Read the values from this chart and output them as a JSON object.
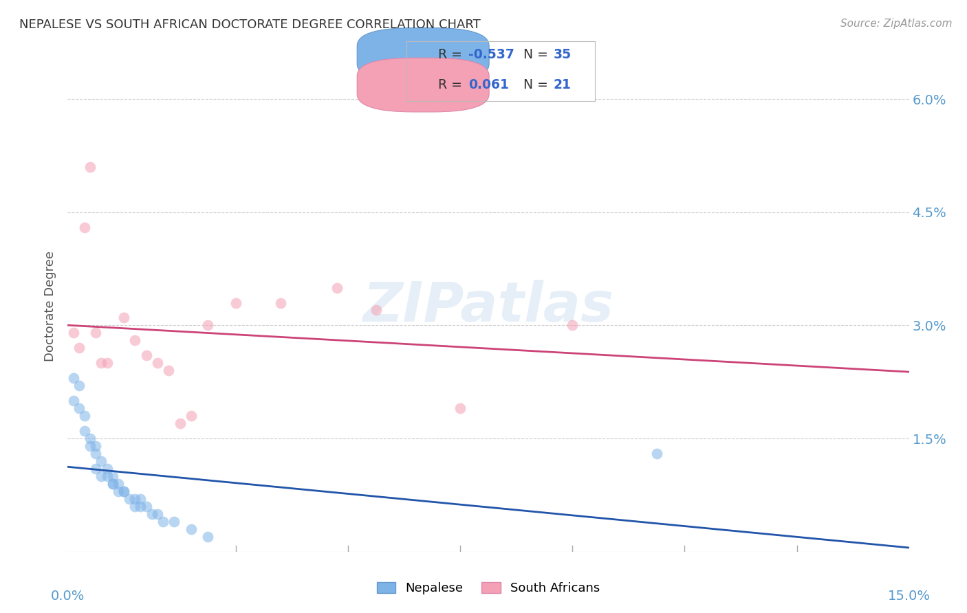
{
  "title": "NEPALESE VS SOUTH AFRICAN DOCTORATE DEGREE CORRELATION CHART",
  "source": "Source: ZipAtlas.com",
  "ylabel": "Doctorate Degree",
  "xlim": [
    0.0,
    0.15
  ],
  "ylim": [
    0.0,
    0.065
  ],
  "ytick_vals": [
    0.015,
    0.03,
    0.045,
    0.06
  ],
  "ytick_labels": [
    "1.5%",
    "3.0%",
    "4.5%",
    "6.0%"
  ],
  "grid_color": "#cccccc",
  "background_color": "#ffffff",
  "nepalese_color": "#7EB3E8",
  "nepalese_edge_color": "#6699CC",
  "nepalese_line_color": "#2255AA",
  "south_african_color": "#F4A0B5",
  "south_african_edge_color": "#DD88AA",
  "south_african_line_color": "#CC4477",
  "nepalese_R": "-0.537",
  "nepalese_N": "35",
  "south_african_R": "0.061",
  "south_african_N": "21",
  "legend_text_color": "#333333",
  "legend_value_color": "#3366CC",
  "tick_label_color": "#5599CC",
  "nepalese_x": [
    0.001,
    0.001,
    0.002,
    0.002,
    0.003,
    0.003,
    0.004,
    0.004,
    0.005,
    0.005,
    0.005,
    0.006,
    0.006,
    0.007,
    0.007,
    0.008,
    0.008,
    0.008,
    0.009,
    0.009,
    0.01,
    0.01,
    0.011,
    0.012,
    0.012,
    0.013,
    0.013,
    0.014,
    0.015,
    0.016,
    0.017,
    0.019,
    0.022,
    0.025,
    0.105
  ],
  "nepalese_y": [
    0.023,
    0.02,
    0.019,
    0.022,
    0.016,
    0.018,
    0.014,
    0.015,
    0.011,
    0.013,
    0.014,
    0.01,
    0.012,
    0.01,
    0.011,
    0.009,
    0.01,
    0.009,
    0.008,
    0.009,
    0.008,
    0.008,
    0.007,
    0.007,
    0.006,
    0.007,
    0.006,
    0.006,
    0.005,
    0.005,
    0.004,
    0.004,
    0.003,
    0.002,
    0.013
  ],
  "south_african_x": [
    0.001,
    0.002,
    0.003,
    0.004,
    0.005,
    0.006,
    0.007,
    0.01,
    0.012,
    0.014,
    0.016,
    0.018,
    0.02,
    0.022,
    0.025,
    0.03,
    0.038,
    0.048,
    0.055,
    0.07,
    0.09
  ],
  "south_african_y": [
    0.029,
    0.027,
    0.043,
    0.051,
    0.029,
    0.025,
    0.025,
    0.031,
    0.028,
    0.026,
    0.025,
    0.024,
    0.017,
    0.018,
    0.03,
    0.033,
    0.033,
    0.035,
    0.032,
    0.019,
    0.03
  ]
}
